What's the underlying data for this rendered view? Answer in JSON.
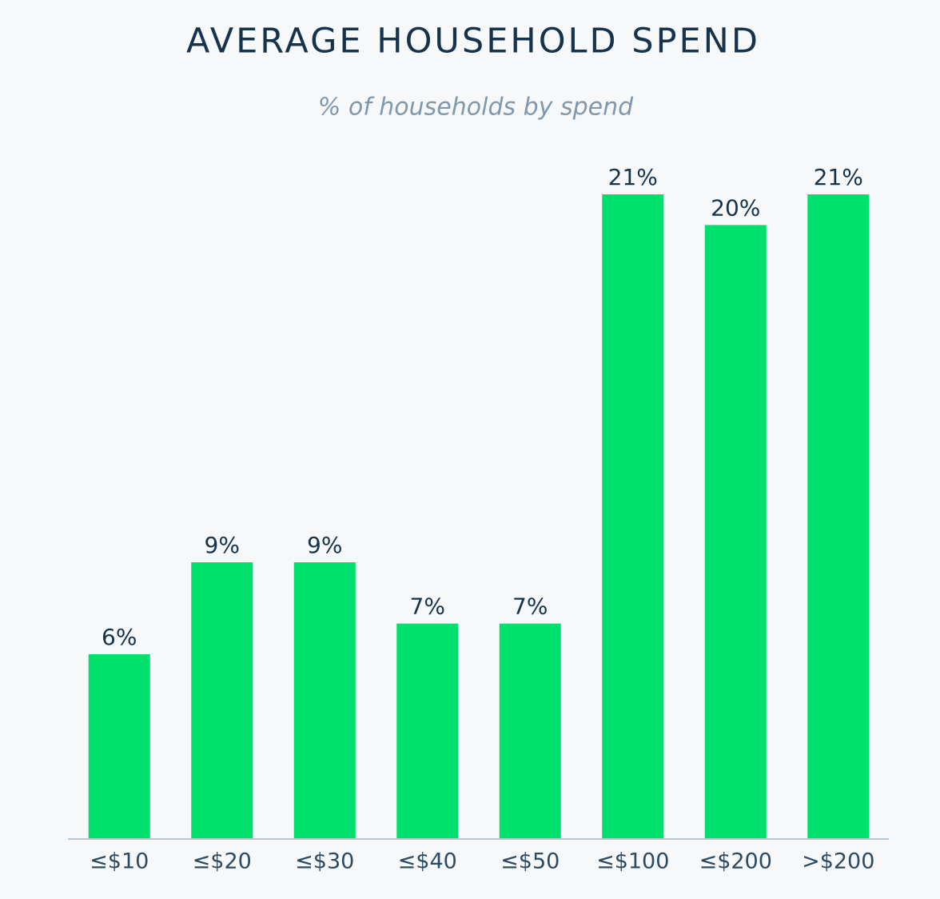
{
  "chart_data": {
    "type": "bar",
    "title": "AVERAGE HOUSEHOLD SPEND",
    "subtitle": "% of households by spend",
    "categories": [
      "≤$10",
      "≤$20",
      "≤$30",
      "≤$40",
      "≤$50",
      "≤$100",
      "≤$200",
      ">$200"
    ],
    "values": [
      6,
      9,
      9,
      7,
      7,
      21,
      20,
      21
    ],
    "value_labels": [
      "6%",
      "9%",
      "9%",
      "7%",
      "7%",
      "21%",
      "20%",
      "21%"
    ],
    "color": "#00e06c"
  }
}
